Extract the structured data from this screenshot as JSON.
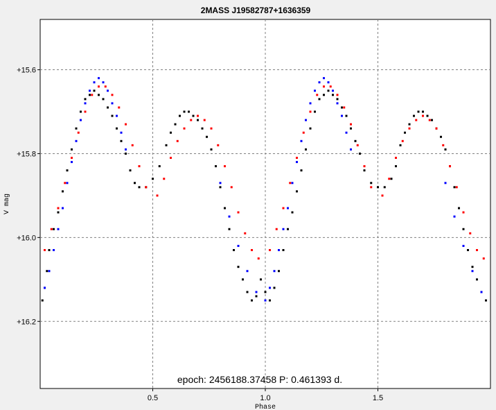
{
  "chart_data": {
    "type": "scatter",
    "title": "2MASS J19582787+1636359",
    "xlabel": "Phase",
    "ylabel": "V mag",
    "xlim": [
      0.0,
      2.0
    ],
    "ylim": [
      15.48,
      16.36
    ],
    "y_inverted": true,
    "grid": true,
    "x_ticks": [
      0.5,
      1.0,
      1.5
    ],
    "x_tick_labels": [
      "0.5",
      "1.0",
      "1.5"
    ],
    "y_ticks": [
      15.6,
      15.8,
      16.0,
      16.2
    ],
    "y_tick_labels": [
      "+15.6",
      "+15.8",
      "+16.0",
      "+16.2"
    ],
    "annotation": "epoch: 2456188.37458  P: 0.461393 d.",
    "period_days": 0.461393,
    "epoch": 2456188.37458,
    "colors": {
      "background": "#ffffff",
      "frame": "#f0f0f0",
      "grid": "#808080"
    },
    "series": [
      {
        "color": "#000000",
        "x": [
          0.01,
          0.02,
          0.03,
          0.04,
          0.06,
          0.08,
          0.1,
          0.12,
          0.14,
          0.16,
          0.18,
          0.2,
          0.22,
          0.24,
          0.26,
          0.28,
          0.3,
          0.32,
          0.34,
          0.36,
          0.38,
          0.4,
          0.42,
          0.44,
          0.47,
          0.5,
          0.53,
          0.56,
          0.58,
          0.6,
          0.62,
          0.64,
          0.66,
          0.68,
          0.7,
          0.72,
          0.74,
          0.76,
          0.78,
          0.8,
          0.82,
          0.84,
          0.86,
          0.88,
          0.9,
          0.92,
          0.94,
          0.96,
          0.98,
          1.0,
          1.02,
          1.04,
          1.06,
          1.08,
          1.1,
          1.12,
          1.14,
          1.16,
          1.18,
          1.2,
          1.22,
          1.24,
          1.26,
          1.28,
          1.3,
          1.32,
          1.34,
          1.36,
          1.38,
          1.4,
          1.42,
          1.44,
          1.47,
          1.5,
          1.53,
          1.56,
          1.58,
          1.6,
          1.62,
          1.64,
          1.66,
          1.68,
          1.7,
          1.72,
          1.74,
          1.76,
          1.78,
          1.8,
          1.82,
          1.84,
          1.86,
          1.88,
          1.9,
          1.92,
          1.94,
          1.96,
          1.98
        ],
        "y": [
          16.15,
          16.12,
          16.08,
          16.03,
          15.98,
          15.94,
          15.89,
          15.84,
          15.79,
          15.74,
          15.7,
          15.67,
          15.66,
          15.65,
          15.66,
          15.67,
          15.69,
          15.71,
          15.74,
          15.77,
          15.8,
          15.84,
          15.87,
          15.88,
          15.88,
          15.86,
          15.83,
          15.78,
          15.75,
          15.73,
          15.71,
          15.7,
          15.7,
          15.71,
          15.72,
          15.74,
          15.76,
          15.79,
          15.83,
          15.88,
          15.93,
          15.98,
          16.03,
          16.07,
          16.1,
          16.13,
          16.15,
          16.14,
          16.1,
          16.13,
          16.15,
          16.12,
          16.08,
          16.03,
          15.98,
          15.94,
          15.89,
          15.84,
          15.79,
          15.74,
          15.7,
          15.67,
          15.66,
          15.65,
          15.66,
          15.67,
          15.69,
          15.71,
          15.74,
          15.77,
          15.8,
          15.84,
          15.87,
          15.88,
          15.88,
          15.86,
          15.83,
          15.78,
          15.75,
          15.73,
          15.71,
          15.7,
          15.7,
          15.71,
          15.72,
          15.74,
          15.76,
          15.79,
          15.83,
          15.88,
          15.93,
          15.98,
          16.03,
          16.07,
          16.1,
          16.13,
          16.15
        ]
      },
      {
        "color": "#ff0000",
        "x": [
          0.02,
          0.05,
          0.08,
          0.11,
          0.14,
          0.17,
          0.2,
          0.23,
          0.26,
          0.29,
          0.32,
          0.35,
          0.38,
          0.41,
          0.44,
          0.47,
          0.52,
          0.55,
          0.58,
          0.61,
          0.64,
          0.67,
          0.7,
          0.73,
          0.76,
          0.79,
          0.82,
          0.85,
          0.88,
          0.91,
          0.94,
          0.97,
          1.02,
          1.05,
          1.08,
          1.11,
          1.14,
          1.17,
          1.2,
          1.23,
          1.26,
          1.29,
          1.32,
          1.35,
          1.38,
          1.41,
          1.44,
          1.47,
          1.52,
          1.55,
          1.58,
          1.61,
          1.64,
          1.67,
          1.7,
          1.73,
          1.76,
          1.79,
          1.82,
          1.85,
          1.88,
          1.91,
          1.94,
          1.97
        ],
        "y": [
          16.03,
          15.98,
          15.93,
          15.87,
          15.81,
          15.75,
          15.7,
          15.66,
          15.64,
          15.64,
          15.66,
          15.69,
          15.73,
          15.78,
          15.83,
          15.88,
          15.9,
          15.86,
          15.81,
          15.77,
          15.74,
          15.72,
          15.71,
          15.72,
          15.74,
          15.78,
          15.83,
          15.88,
          15.94,
          15.99,
          16.03,
          16.05,
          16.03,
          15.98,
          15.93,
          15.87,
          15.81,
          15.75,
          15.7,
          15.66,
          15.64,
          15.64,
          15.66,
          15.69,
          15.73,
          15.78,
          15.83,
          15.88,
          15.9,
          15.86,
          15.81,
          15.77,
          15.74,
          15.72,
          15.71,
          15.72,
          15.74,
          15.78,
          15.83,
          15.88,
          15.94,
          15.99,
          16.03,
          16.05
        ]
      },
      {
        "color": "#0000ff",
        "x": [
          0.02,
          0.04,
          0.06,
          0.08,
          0.1,
          0.12,
          0.14,
          0.16,
          0.18,
          0.2,
          0.22,
          0.24,
          0.26,
          0.28,
          0.3,
          0.32,
          0.34,
          0.36,
          0.38,
          0.8,
          0.84,
          0.88,
          0.92,
          0.96,
          1.0,
          1.02,
          1.04,
          1.06,
          1.08,
          1.1,
          1.12,
          1.14,
          1.16,
          1.18,
          1.2,
          1.22,
          1.24,
          1.26,
          1.28,
          1.3,
          1.32,
          1.34,
          1.36,
          1.38,
          1.8,
          1.84,
          1.88,
          1.92,
          1.96
        ],
        "y": [
          16.12,
          16.08,
          16.03,
          15.98,
          15.93,
          15.87,
          15.82,
          15.77,
          15.72,
          15.68,
          15.65,
          15.63,
          15.62,
          15.63,
          15.65,
          15.68,
          15.71,
          15.75,
          15.79,
          15.87,
          15.95,
          16.02,
          16.08,
          16.13,
          16.15,
          16.12,
          16.08,
          16.03,
          15.98,
          15.93,
          15.87,
          15.82,
          15.77,
          15.72,
          15.68,
          15.65,
          15.63,
          15.62,
          15.63,
          15.65,
          15.68,
          15.71,
          15.75,
          15.79,
          15.87,
          15.95,
          16.02,
          16.08,
          16.13
        ]
      }
    ]
  }
}
